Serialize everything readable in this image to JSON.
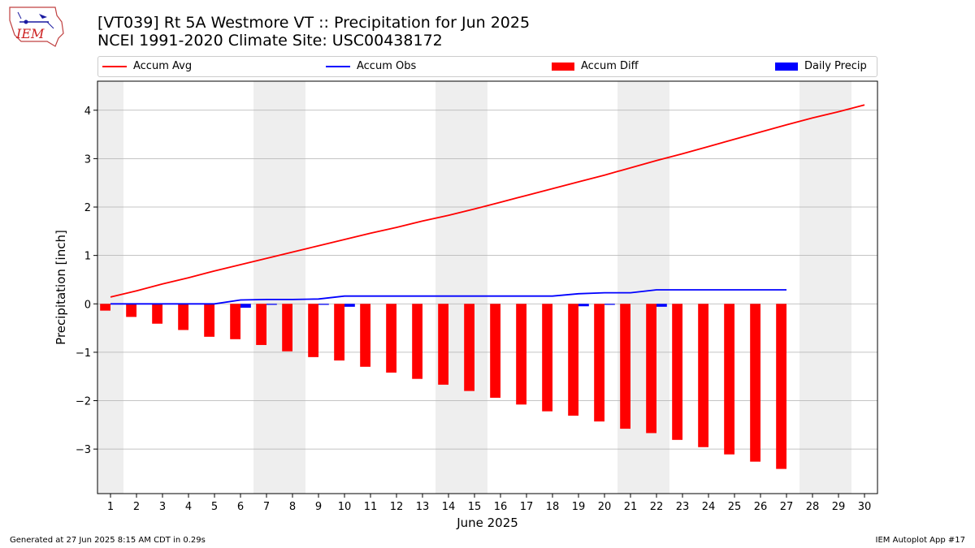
{
  "header": {
    "title": "[VT039] Rt 5A Westmore  VT :: Precipitation for Jun 2025",
    "subtitle": "NCEI 1991-2020 Climate Site: USC00438172",
    "logo_text": "IEM"
  },
  "footer": {
    "left": "Generated at 27 Jun 2025 8:15 AM CDT in 0.29s",
    "right": "IEM Autoplot App #17"
  },
  "colors": {
    "avg": "#ff0000",
    "obs": "#0000ff",
    "diff": "#ff0000",
    "daily": "#0000ff",
    "weekend": "#eeeeee",
    "grid": "#b0b0b0"
  },
  "legend": {
    "accum_avg": "Accum Avg",
    "accum_obs": "Accum Obs",
    "accum_diff": "Accum Diff",
    "daily_precip": "Daily Precip"
  },
  "chart_data": {
    "type": "bar",
    "xlabel": "June 2025",
    "ylabel": "Precipitation [inch]",
    "xlim": [
      0.5,
      30.5
    ],
    "ylim": [
      -3.92,
      4.6
    ],
    "yticks": [
      -3,
      -2,
      -1,
      0,
      1,
      2,
      3,
      4
    ],
    "ytick_labels": [
      "−3",
      "−2",
      "−1",
      "0",
      "1",
      "2",
      "3",
      "4"
    ],
    "xticks": [
      1,
      2,
      3,
      4,
      5,
      6,
      7,
      8,
      9,
      10,
      11,
      12,
      13,
      14,
      15,
      16,
      17,
      18,
      19,
      20,
      21,
      22,
      23,
      24,
      25,
      26,
      27,
      28,
      29,
      30
    ],
    "grid": "y",
    "legend_position": "top",
    "weekend_shading": [
      [
        0.5,
        1.5
      ],
      [
        6.5,
        8.5
      ],
      [
        13.5,
        15.5
      ],
      [
        20.5,
        22.5
      ],
      [
        27.5,
        29.5
      ]
    ],
    "series": [
      {
        "name": "Accum Avg",
        "type": "line",
        "x": [
          1,
          2,
          3,
          4,
          5,
          6,
          7,
          8,
          9,
          10,
          11,
          12,
          13,
          14,
          15,
          16,
          17,
          18,
          19,
          20,
          21,
          22,
          23,
          24,
          25,
          26,
          27,
          28,
          29,
          30
        ],
        "values": [
          0.14,
          0.27,
          0.41,
          0.54,
          0.68,
          0.81,
          0.94,
          1.07,
          1.2,
          1.33,
          1.46,
          1.58,
          1.71,
          1.83,
          1.96,
          2.1,
          2.24,
          2.38,
          2.52,
          2.66,
          2.81,
          2.96,
          3.1,
          3.25,
          3.4,
          3.55,
          3.7,
          3.84,
          3.97,
          4.11
        ]
      },
      {
        "name": "Accum Obs",
        "type": "line",
        "x": [
          1,
          2,
          3,
          4,
          5,
          6,
          7,
          8,
          9,
          10,
          11,
          12,
          13,
          14,
          15,
          16,
          17,
          18,
          19,
          20,
          21,
          22,
          23,
          24,
          25,
          26,
          27
        ],
        "values": [
          0.0,
          0.0,
          0.0,
          0.0,
          0.0,
          0.08,
          0.09,
          0.09,
          0.1,
          0.16,
          0.16,
          0.16,
          0.16,
          0.16,
          0.16,
          0.16,
          0.16,
          0.16,
          0.21,
          0.23,
          0.23,
          0.29,
          0.29,
          0.29,
          0.29,
          0.29,
          0.29
        ]
      },
      {
        "name": "Accum Diff",
        "type": "bar",
        "x": [
          1,
          2,
          3,
          4,
          5,
          6,
          7,
          8,
          9,
          10,
          11,
          12,
          13,
          14,
          15,
          16,
          17,
          18,
          19,
          20,
          21,
          22,
          23,
          24,
          25,
          26,
          27
        ],
        "values": [
          -0.14,
          -0.27,
          -0.41,
          -0.54,
          -0.68,
          -0.73,
          -0.85,
          -0.98,
          -1.1,
          -1.17,
          -1.3,
          -1.42,
          -1.55,
          -1.67,
          -1.8,
          -1.94,
          -2.08,
          -2.22,
          -2.31,
          -2.43,
          -2.58,
          -2.67,
          -2.81,
          -2.96,
          -3.11,
          -3.26,
          -3.41
        ]
      },
      {
        "name": "Daily Precip",
        "type": "bar",
        "x": [
          6,
          7,
          9,
          10,
          19,
          20,
          22
        ],
        "values": [
          0.08,
          0.01,
          0.01,
          0.06,
          0.05,
          0.02,
          0.06
        ]
      }
    ]
  }
}
